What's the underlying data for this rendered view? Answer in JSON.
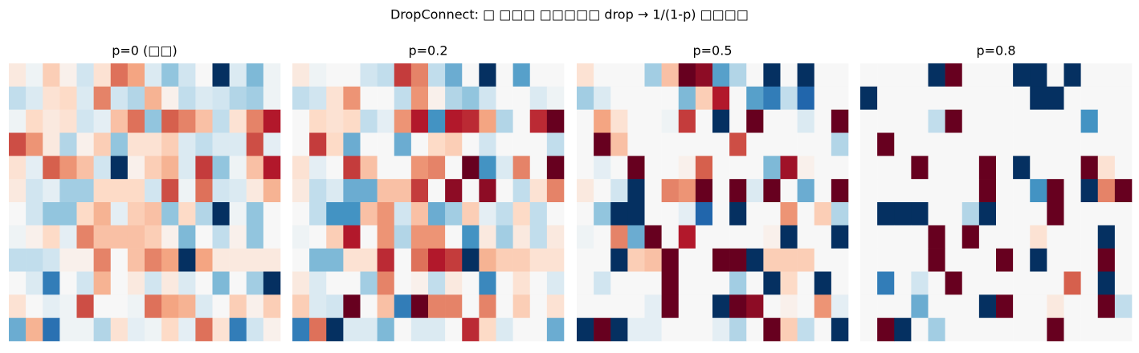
{
  "title": "DropConnect: □ □□□ □□□□□ drop → 1/(1-p) □□□□",
  "chart_data": [
    {
      "type": "heatmap",
      "title": "p=0 (□□)",
      "vlim": [
        -2,
        2
      ],
      "colormap": [
        "#053061",
        "#2166ac",
        "#4393c3",
        "#92c5de",
        "#d1e5f0",
        "#f7f7f7",
        "#fddbc7",
        "#f4a582",
        "#d6604d",
        "#b2182b",
        "#67001f"
      ],
      "values": [
        [
          0.2,
          -0.1,
          0.5,
          0.1,
          -0.4,
          0.3,
          1.1,
          0.8,
          -0.3,
          -0.8,
          -0.4,
          0.0,
          -2.0,
          -0.3,
          -0.9,
          -0.1
        ],
        [
          -0.5,
          -0.3,
          0.3,
          0.4,
          -0.3,
          1.0,
          -0.4,
          -0.6,
          0.7,
          0.1,
          -0.5,
          -0.3,
          -0.4,
          -0.6,
          -0.7,
          -0.1
        ],
        [
          -0.1,
          0.4,
          0.2,
          0.3,
          -0.4,
          -0.2,
          0.6,
          1.1,
          -0.8,
          1.2,
          1.0,
          0.6,
          -0.5,
          0.3,
          1.0,
          1.6
        ],
        [
          1.3,
          0.9,
          0.2,
          -0.6,
          0.1,
          0.5,
          -0.8,
          0.3,
          0.3,
          0.5,
          -0.3,
          -0.5,
          -0.3,
          -0.3,
          1.3,
          -0.2
        ],
        [
          0.3,
          -0.2,
          1.2,
          0.9,
          0.6,
          -0.4,
          -2.0,
          0.1,
          0.5,
          0.7,
          -0.3,
          1.4,
          -0.8,
          -0.1,
          0.6,
          1.6
        ],
        [
          0.2,
          -0.4,
          -0.2,
          -0.7,
          -0.7,
          0.4,
          0.4,
          0.4,
          -0.4,
          1.3,
          -0.1,
          1.1,
          -0.4,
          -0.3,
          0.2,
          0.7
        ],
        [
          0.0,
          -0.4,
          -0.8,
          -0.8,
          0.4,
          0.7,
          -0.2,
          0.5,
          0.6,
          -0.8,
          0.4,
          -0.6,
          -2.0,
          -0.1,
          -0.8,
          0.0
        ],
        [
          -0.1,
          0.1,
          0.4,
          -0.2,
          1.0,
          0.6,
          0.6,
          0.6,
          0.5,
          0.1,
          -0.9,
          0.0,
          -0.5,
          0.1,
          -0.8,
          0.0
        ],
        [
          -0.5,
          -0.5,
          -0.4,
          0.1,
          0.1,
          1.0,
          0.0,
          0.6,
          1.0,
          0.8,
          -2.0,
          0.8,
          0.2,
          0.2,
          0.2,
          0.2
        ],
        [
          0.0,
          -0.3,
          -1.4,
          0.0,
          -0.4,
          0.7,
          0.0,
          0.2,
          -0.4,
          0.2,
          -0.3,
          0.0,
          -0.9,
          0.0,
          -0.7,
          -2.0
        ],
        [
          0.3,
          0.0,
          -0.2,
          -0.1,
          1.3,
          0.0,
          0.0,
          -0.1,
          1.1,
          0.8,
          0.7,
          -0.3,
          0.0,
          0.5,
          0.1,
          0.5
        ],
        [
          -1.0,
          0.7,
          -1.5,
          -0.1,
          -0.1,
          -0.6,
          0.3,
          -0.2,
          -0.1,
          0.4,
          -0.2,
          1.1,
          0.3,
          -1.4,
          -0.4,
          0.1
        ]
      ]
    },
    {
      "type": "heatmap",
      "title": "p=0.2",
      "vlim": [
        -2,
        2
      ],
      "colormap": [
        "#053061",
        "#2166ac",
        "#4393c3",
        "#92c5de",
        "#d1e5f0",
        "#f7f7f7",
        "#fddbc7",
        "#f4a582",
        "#d6604d",
        "#b2182b",
        "#67001f"
      ],
      "values": [
        [
          0.2,
          -0.1,
          0,
          0,
          -0.4,
          -0.5,
          1.4,
          1.0,
          -0.5,
          -1.0,
          0,
          -2.2,
          0,
          -1.1,
          0,
          0
        ],
        [
          -0.5,
          -0.4,
          0.3,
          0.9,
          0,
          0,
          -0.5,
          0.9,
          0.1,
          -0.6,
          -0.8,
          -0.4,
          0,
          0,
          -0.3,
          -0.1
        ],
        [
          0,
          0.4,
          0.3,
          0.4,
          -0.5,
          -0.2,
          0.9,
          1.6,
          -1.2,
          1.6,
          1.5,
          0.8,
          -0.6,
          0,
          1.5,
          2.2
        ],
        [
          0,
          1.4,
          0.4,
          -1.0,
          0,
          0,
          -1.0,
          0,
          0.4,
          0.5,
          0,
          -0.4,
          0,
          0,
          0,
          -0.5
        ],
        [
          0.3,
          -0.2,
          0,
          1.4,
          0.6,
          0,
          0,
          0.9,
          1.0,
          0,
          2.2,
          -1.2,
          -0.3,
          1.0,
          0,
          2.4
        ],
        [
          0.2,
          -0.5,
          -0.3,
          -1.0,
          -1.0,
          0.6,
          0.6,
          1.4,
          0,
          1.8,
          0,
          1.8,
          0,
          -0.5,
          0.3,
          1.0
        ],
        [
          0,
          -0.5,
          -1.2,
          -1.2,
          0.6,
          0.9,
          -0.4,
          0.6,
          -1.0,
          -0.7,
          0.5,
          -0.2,
          -0.5,
          0.4,
          -0.5,
          0
        ],
        [
          -0.1,
          0,
          0.5,
          1.6,
          0,
          0.9,
          -0.6,
          0.9,
          0.9,
          0,
          -1.2,
          0.2,
          -0.7,
          0.2,
          -0.5,
          0.2
        ],
        [
          0,
          -0.9,
          -0.9,
          0.3,
          0.3,
          1.5,
          0,
          1.1,
          1.6,
          1.4,
          -2.0,
          0.7,
          0.5,
          0.5,
          0.3,
          0.3
        ],
        [
          0.2,
          -0.3,
          0,
          0,
          -0.7,
          1.0,
          0,
          0.1,
          -0.5,
          0.2,
          0,
          -1.3,
          0,
          0.3,
          0,
          -0.3
        ],
        [
          0.5,
          -0.3,
          -0.4,
          2.2,
          0,
          0.6,
          -1.4,
          2.0,
          1.0,
          1.0,
          0,
          1.0,
          0,
          0.5,
          0,
          0.3
        ],
        [
          -1.4,
          1.1,
          -2.2,
          -0.3,
          -0.3,
          -0.9,
          0,
          -0.3,
          -0.3,
          0,
          1.5,
          0.4,
          -0.3,
          0,
          0,
          -1.0
        ]
      ]
    },
    {
      "type": "heatmap",
      "title": "p=0.5",
      "vlim": [
        -2,
        2
      ],
      "colormap": [
        "#053061",
        "#2166ac",
        "#4393c3",
        "#92c5de",
        "#d1e5f0",
        "#f7f7f7",
        "#fddbc7",
        "#f4a582",
        "#d6604d",
        "#b2182b",
        "#67001f"
      ],
      "values": [
        [
          0.3,
          0,
          0,
          0,
          -0.7,
          0.6,
          2.4,
          1.8,
          -1.1,
          -0.6,
          0,
          -2.2,
          0,
          -2.2,
          0,
          0
        ],
        [
          -0.7,
          -0.3,
          0,
          0,
          0,
          0,
          -0.9,
          0.5,
          1.6,
          0,
          -1.1,
          -1.4,
          -0.5,
          -1.6,
          0,
          0
        ],
        [
          0,
          0.8,
          0.3,
          0,
          0,
          -0.1,
          1.4,
          0,
          -2.2,
          0,
          2.3,
          0,
          0,
          -0.3,
          0,
          2.4
        ],
        [
          0,
          2.4,
          0.6,
          0,
          0,
          0,
          0,
          0,
          0,
          1.3,
          0,
          0,
          0,
          0,
          0,
          -0.6
        ],
        [
          0,
          -0.2,
          0,
          2.4,
          0,
          0,
          0.1,
          1.2,
          0,
          0,
          0,
          -0.9,
          1.7,
          0.1,
          0,
          0
        ],
        [
          0.2,
          0,
          -0.4,
          -2.2,
          0,
          1.0,
          0.9,
          2.4,
          0,
          2.4,
          -0.3,
          2.4,
          0,
          -1.0,
          0,
          2.0
        ],
        [
          0,
          -0.8,
          -2.2,
          -2.2,
          0,
          0,
          -0.2,
          -1.6,
          0,
          -2.2,
          0,
          0,
          0.9,
          0,
          0.5,
          -0.6
        ],
        [
          -0.1,
          0,
          1.0,
          -1.0,
          2.4,
          0,
          1.6,
          0,
          0,
          0,
          0,
          0.1,
          -2.2,
          0,
          0,
          -2.2
        ],
        [
          0,
          0,
          -2.2,
          0.5,
          0.6,
          2.4,
          0,
          0,
          2.4,
          2.4,
          -2.2,
          0.5,
          0.5,
          0.5,
          0,
          0
        ],
        [
          0,
          -0.4,
          0,
          0,
          0,
          2.4,
          0,
          0,
          0,
          -0.7,
          0,
          -2.2,
          0.4,
          0,
          -2.2,
          0
        ],
        [
          0,
          0,
          0,
          0,
          -0.2,
          2.4,
          0,
          0,
          -2.2,
          2.4,
          1.8,
          0,
          0.1,
          0,
          0.9,
          -0.2
        ],
        [
          -2.2,
          2.4,
          -2.2,
          -0.2,
          -0.2,
          0,
          0,
          0,
          -0.2,
          -0.6,
          0,
          2.4,
          0.5,
          -0.5,
          0,
          -2.2
        ]
      ]
    },
    {
      "type": "heatmap",
      "title": "p=0.8",
      "vlim": [
        -2,
        2
      ],
      "colormap": [
        "#053061",
        "#2166ac",
        "#4393c3",
        "#92c5de",
        "#d1e5f0",
        "#f7f7f7",
        "#fddbc7",
        "#f4a582",
        "#d6604d",
        "#b2182b",
        "#67001f"
      ],
      "values": [
        [
          0,
          0,
          0,
          0,
          -5,
          3,
          0,
          0,
          0,
          -5,
          -5,
          0,
          -5,
          0,
          0,
          0
        ],
        [
          -5,
          0,
          0,
          0,
          0,
          0,
          0,
          0,
          0,
          0,
          -5,
          -5,
          0,
          0,
          0,
          0
        ],
        [
          0,
          0,
          0,
          0,
          -0.5,
          5,
          0,
          0,
          0,
          0,
          0,
          0,
          0,
          -1.2,
          0,
          0
        ],
        [
          0,
          5,
          0,
          0,
          0,
          0,
          0,
          0,
          0,
          0,
          0,
          0,
          0,
          0,
          0,
          0
        ],
        [
          0,
          0,
          0,
          5,
          0,
          0,
          0,
          5,
          0,
          -5,
          0,
          0,
          0,
          5,
          0.3,
          0
        ],
        [
          0,
          0,
          0,
          0,
          0,
          0,
          0,
          5,
          0,
          0,
          -1.2,
          5,
          0,
          -5,
          1.0,
          5
        ],
        [
          0,
          -5,
          -5,
          -5,
          0,
          0,
          -0.6,
          -5,
          0,
          0,
          0,
          5,
          0,
          0,
          0,
          0
        ],
        [
          0,
          0,
          0,
          0,
          5,
          0,
          5,
          0,
          0,
          0,
          0.3,
          0,
          0,
          0,
          -5,
          0
        ],
        [
          0,
          0,
          0,
          0,
          2.2,
          0,
          0,
          0,
          5,
          0,
          -5,
          0,
          0,
          0,
          2.2,
          0
        ],
        [
          0,
          -1.4,
          0,
          -0.4,
          0,
          5,
          0,
          0,
          0,
          0,
          0,
          0,
          1.2,
          0,
          -5,
          0
        ],
        [
          0,
          0,
          0,
          -1.0,
          0,
          0,
          0,
          -5,
          5,
          0,
          0,
          0.2,
          0,
          0,
          5,
          -0.5
        ],
        [
          0,
          5,
          -5,
          0,
          -0.7,
          0,
          0,
          0,
          0,
          0,
          0,
          5,
          0,
          0,
          0,
          0
        ]
      ]
    }
  ]
}
